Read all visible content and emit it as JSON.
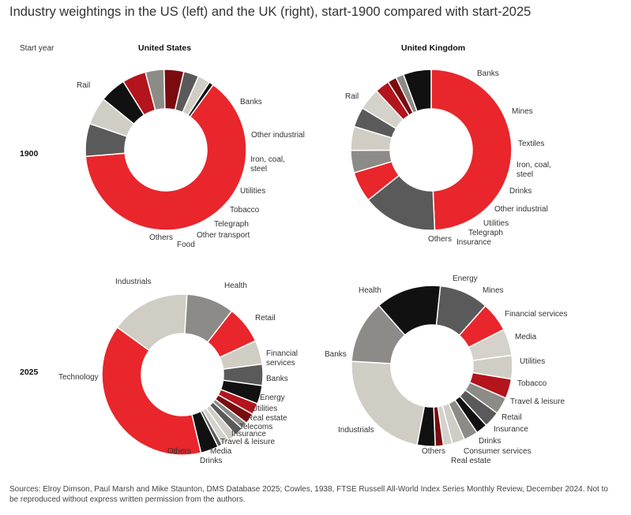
{
  "title": "Industry weightings in the US (left) and the UK (right), start-1900 compared with start-2025",
  "row_header": "Start year",
  "col_headers": [
    "United States",
    "United Kingdom"
  ],
  "year_labels": [
    "1900",
    "2025"
  ],
  "source": "Sources: Elroy Dimson, Paul Marsh and Mike Staunton, DMS Database 2025; Cowles, 1938, FTSE Russell All-World Index Series Monthly Review, December 2024. Not to be reproduced without express written permission from the authors.",
  "chart_data": [
    {
      "type": "pie",
      "title": "United States 1900",
      "slices": [
        {
          "label": "Rail",
          "value": 62.8,
          "color": "#e8262b"
        },
        {
          "label": "Banks",
          "value": 6.5,
          "color": "#5a5a5a"
        },
        {
          "label": "Other industrial",
          "value": 5.5,
          "color": "#cfcdc4"
        },
        {
          "label": "Iron, coal, steel",
          "value": 5.2,
          "color": "#111111"
        },
        {
          "label": "Utilities",
          "value": 4.7,
          "color": "#b4141c"
        },
        {
          "label": "Tobacco",
          "value": 3.7,
          "color": "#8d8b87"
        },
        {
          "label": "Telegraph",
          "value": 3.9,
          "color": "#7a0c10"
        },
        {
          "label": "Other transport",
          "value": 3.0,
          "color": "#5a5a5a"
        },
        {
          "label": "Food",
          "value": 2.4,
          "color": "#cfcdc4"
        },
        {
          "label": "Others",
          "value": 0.9,
          "color": "#111111"
        }
      ]
    },
    {
      "type": "pie",
      "title": "United Kingdom 1900",
      "slices": [
        {
          "label": "Rail",
          "value": 49.3,
          "color": "#e8262b"
        },
        {
          "label": "Banks",
          "value": 15.0,
          "color": "#5a5a5a"
        },
        {
          "label": "Mines",
          "value": 6.1,
          "color": "#e8262b"
        },
        {
          "label": "Textiles",
          "value": 4.5,
          "color": "#8d8b87"
        },
        {
          "label": "Iron, coal, steel",
          "value": 4.8,
          "color": "#cfcdc4"
        },
        {
          "label": "Drinks",
          "value": 4.0,
          "color": "#5a5a5a"
        },
        {
          "label": "Other industrial",
          "value": 4.4,
          "color": "#d4d2ca"
        },
        {
          "label": "Utilities",
          "value": 2.9,
          "color": "#b4141c"
        },
        {
          "label": "Telegraph",
          "value": 1.8,
          "color": "#7a0c10"
        },
        {
          "label": "Insurance",
          "value": 1.6,
          "color": "#8d8b87"
        },
        {
          "label": "Others",
          "value": 5.6,
          "color": "#111111"
        }
      ]
    },
    {
      "type": "pie",
      "title": "United States 2025",
      "slices": [
        {
          "label": "Industrials",
          "value": 15.9,
          "color": "#cfcdc4"
        },
        {
          "label": "Health",
          "value": 9.6,
          "color": "#8d8b87"
        },
        {
          "label": "Retail",
          "value": 7.6,
          "color": "#e8262b"
        },
        {
          "label": "Financial services",
          "value": 4.8,
          "color": "#cfcdc4"
        },
        {
          "label": "Banks",
          "value": 4.3,
          "color": "#5a5a5a"
        },
        {
          "label": "Energy",
          "value": 3.7,
          "color": "#111111"
        },
        {
          "label": "Utilities",
          "value": 2.3,
          "color": "#b4141c"
        },
        {
          "label": "Real estate",
          "value": 2.1,
          "color": "#7a0c10"
        },
        {
          "label": "Telecoms",
          "value": 1.4,
          "color": "#8d8b87"
        },
        {
          "label": "Insurance",
          "value": 1.8,
          "color": "#5a5a5a"
        },
        {
          "label": "Travel & leisure",
          "value": 1.7,
          "color": "#cfcdc4"
        },
        {
          "label": "Media",
          "value": 1.6,
          "color": "#d4d2ca"
        },
        {
          "label": "Drinks",
          "value": 0.9,
          "color": "#5a5a5a"
        },
        {
          "label": "Others",
          "value": 3.6,
          "color": "#111111"
        },
        {
          "label": "Technology",
          "value": 38.7,
          "color": "#e8262b"
        }
      ]
    },
    {
      "type": "pie",
      "title": "United Kingdom 2025",
      "slices": [
        {
          "label": "Energy",
          "value": 9.8,
          "color": "#5a5a5a"
        },
        {
          "label": "Mines",
          "value": 5.9,
          "color": "#e8262b"
        },
        {
          "label": "Financial services",
          "value": 5.3,
          "color": "#d4d2ca"
        },
        {
          "label": "Media",
          "value": 4.7,
          "color": "#cfcdc4"
        },
        {
          "label": "Utilities",
          "value": 3.9,
          "color": "#b4141c"
        },
        {
          "label": "Tobacco",
          "value": 3.4,
          "color": "#8d8b87"
        },
        {
          "label": "Travel & leisure",
          "value": 3.2,
          "color": "#5a5a5a"
        },
        {
          "label": "Retail",
          "value": 2.3,
          "color": "#111111"
        },
        {
          "label": "Insurance",
          "value": 2.8,
          "color": "#8d8b87"
        },
        {
          "label": "Drinks",
          "value": 2.5,
          "color": "#cfcdc4"
        },
        {
          "label": "Consumer services",
          "value": 1.8,
          "color": "#d4d2ca"
        },
        {
          "label": "Real estate",
          "value": 1.6,
          "color": "#7a0c10"
        },
        {
          "label": "Others",
          "value": 3.6,
          "color": "#111111"
        },
        {
          "label": "Industrials",
          "value": 22.7,
          "color": "#cfcdc4"
        },
        {
          "label": "Banks",
          "value": 12.5,
          "color": "#8d8b87"
        },
        {
          "label": "Health",
          "value": 13.0,
          "color": "#111111"
        }
      ]
    }
  ]
}
